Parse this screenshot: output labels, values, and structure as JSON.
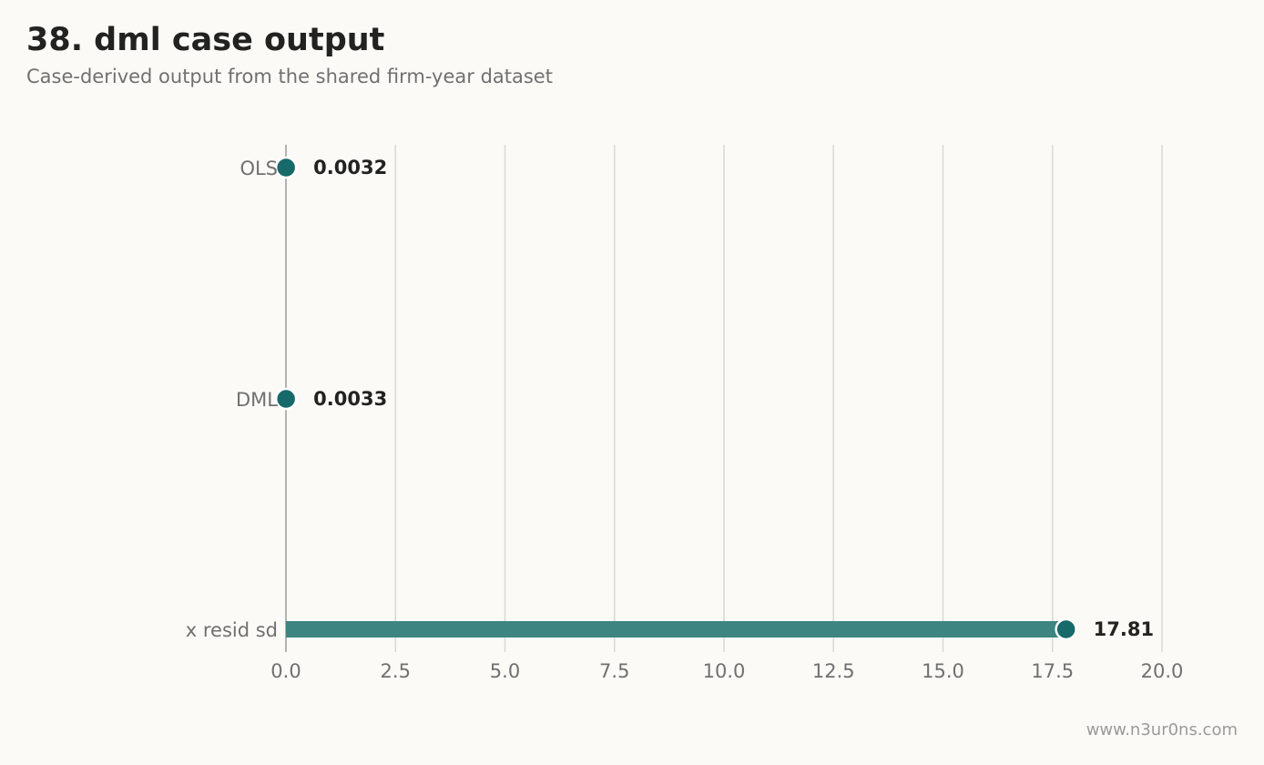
{
  "header": {
    "title": "38. dml case output",
    "subtitle": "Case-derived output from the shared firm-year dataset"
  },
  "footer": {
    "watermark": "www.n3ur0ns.com"
  },
  "colors": {
    "accent": "#17696a",
    "bar": "#3d8580",
    "grid": "#d8d8d4",
    "axis": "#9a9a9a"
  },
  "chart_data": {
    "type": "bar",
    "orientation": "horizontal",
    "categories": [
      "OLS",
      "DML",
      "x resid sd"
    ],
    "values": [
      0.0032,
      0.0033,
      17.81
    ],
    "value_labels": [
      "0.0032",
      "0.0033",
      "17.81"
    ],
    "xlim": [
      0,
      20
    ],
    "xticks": [
      0,
      2.5,
      5,
      7.5,
      10,
      12.5,
      15,
      17.5,
      20
    ],
    "xtick_labels": [
      "0.0",
      "2.5",
      "5.0",
      "7.5",
      "10.0",
      "12.5",
      "15.0",
      "17.5",
      "20.0"
    ],
    "grid": true,
    "title": "38. dml case output",
    "subtitle": "Case-derived output from the shared firm-year dataset",
    "xlabel": "",
    "ylabel": ""
  }
}
